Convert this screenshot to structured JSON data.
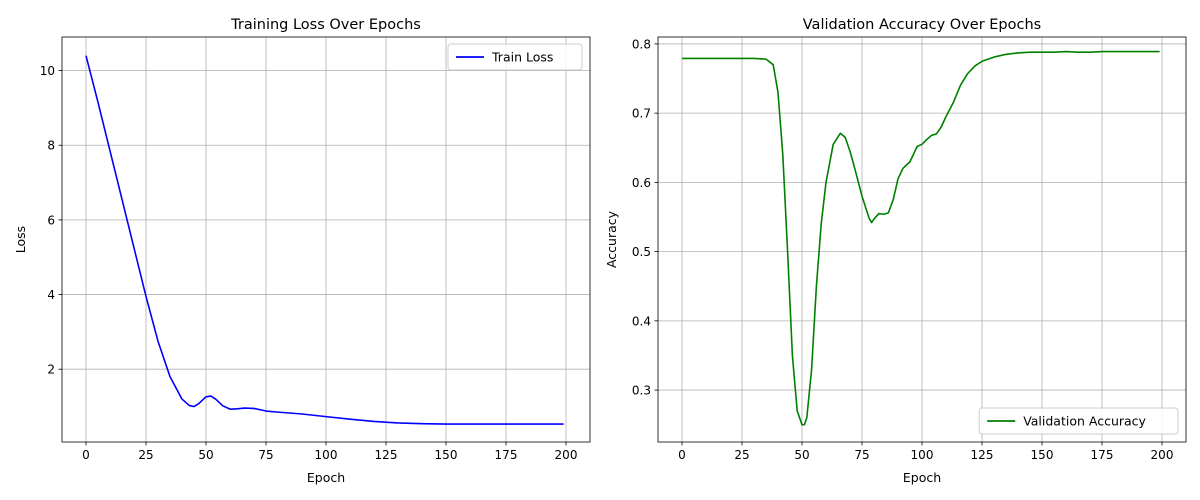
{
  "chart_data": [
    {
      "type": "line",
      "title": "Training Loss Over Epochs",
      "xlabel": "Epoch",
      "ylabel": "Loss",
      "xlim": [
        -10,
        210
      ],
      "ylim": [
        0.05,
        10.9
      ],
      "xticks": [
        0,
        25,
        50,
        75,
        100,
        125,
        150,
        175,
        200
      ],
      "yticks": [
        2,
        4,
        6,
        8,
        10
      ],
      "grid": true,
      "legend": "top-right",
      "series": [
        {
          "name": "Train Loss",
          "color": "#0000ff",
          "x": [
            0,
            5,
            10,
            15,
            20,
            25,
            30,
            35,
            40,
            43,
            45,
            47,
            50,
            52,
            54,
            57,
            60,
            63,
            66,
            70,
            75,
            80,
            90,
            100,
            110,
            120,
            130,
            140,
            150,
            160,
            170,
            180,
            190,
            199
          ],
          "y": [
            10.4,
            9.15,
            7.85,
            6.55,
            5.25,
            3.95,
            2.75,
            1.8,
            1.2,
            1.03,
            1.0,
            1.08,
            1.26,
            1.28,
            1.2,
            1.02,
            0.93,
            0.94,
            0.96,
            0.95,
            0.88,
            0.85,
            0.8,
            0.73,
            0.66,
            0.6,
            0.56,
            0.54,
            0.53,
            0.53,
            0.53,
            0.53,
            0.53,
            0.53
          ]
        }
      ]
    },
    {
      "type": "line",
      "title": "Validation Accuracy Over Epochs",
      "xlabel": "Epoch",
      "ylabel": "Accuracy",
      "xlim": [
        -10,
        210
      ],
      "ylim": [
        0.225,
        0.81
      ],
      "xticks": [
        0,
        25,
        50,
        75,
        100,
        125,
        150,
        175,
        200
      ],
      "yticks": [
        0.3,
        0.4,
        0.5,
        0.6,
        0.7,
        0.8
      ],
      "grid": true,
      "legend": "bottom-right",
      "series": [
        {
          "name": "Validation Accuracy",
          "color": "#008000",
          "x": [
            0,
            10,
            20,
            30,
            35,
            38,
            40,
            42,
            44,
            46,
            48,
            50,
            51,
            52,
            54,
            56,
            58,
            60,
            63,
            66,
            68,
            70,
            72,
            75,
            78,
            79,
            80,
            82,
            84,
            86,
            88,
            90,
            92,
            95,
            98,
            100,
            102,
            104,
            106,
            108,
            110,
            113,
            116,
            119,
            122,
            125,
            130,
            135,
            140,
            145,
            150,
            155,
            160,
            165,
            170,
            175,
            180,
            185,
            190,
            195,
            199
          ],
          "y": [
            0.779,
            0.779,
            0.779,
            0.779,
            0.778,
            0.77,
            0.73,
            0.64,
            0.5,
            0.35,
            0.27,
            0.25,
            0.25,
            0.26,
            0.33,
            0.45,
            0.54,
            0.6,
            0.655,
            0.671,
            0.665,
            0.645,
            0.62,
            0.58,
            0.548,
            0.542,
            0.547,
            0.555,
            0.554,
            0.556,
            0.575,
            0.605,
            0.62,
            0.63,
            0.652,
            0.655,
            0.662,
            0.668,
            0.67,
            0.68,
            0.695,
            0.715,
            0.74,
            0.757,
            0.768,
            0.775,
            0.781,
            0.785,
            0.787,
            0.788,
            0.788,
            0.788,
            0.789,
            0.788,
            0.788,
            0.789,
            0.789,
            0.789,
            0.789,
            0.789,
            0.789
          ]
        }
      ]
    }
  ]
}
